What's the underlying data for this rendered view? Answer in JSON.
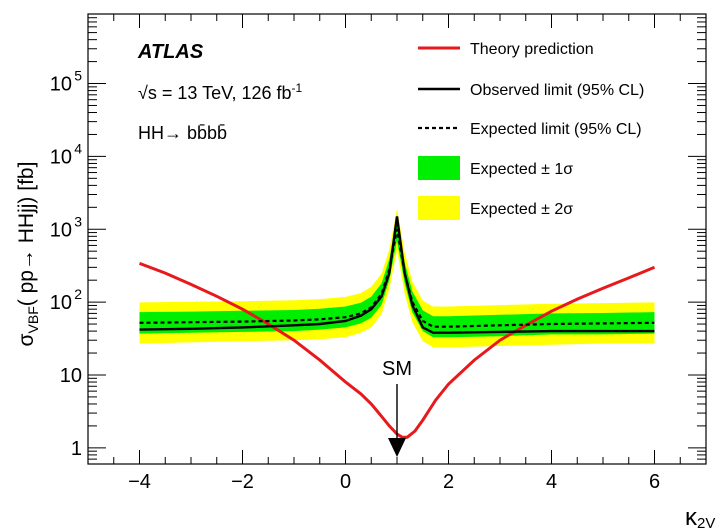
{
  "chart_data": {
    "type": "line",
    "title": "",
    "experiment": "ATLAS",
    "energy_label": "√s = 13 TeV, 126 fb",
    "lumi_superscript": "-1",
    "channel_label": "HH→ bb̄bb̄",
    "ylabel": "σ",
    "ylabel_sub": "VBF",
    "ylabel_rest": "( pp→ HHjj) [fb]",
    "xlabel": "κ",
    "xlabel_sub": "2V",
    "xlim": [
      -5,
      7
    ],
    "ylim": [
      0.6,
      900000
    ],
    "yscale": "log",
    "xticks": [
      "−4",
      "−2",
      "0",
      "2",
      "4",
      "6"
    ],
    "xtick_values": [
      -4,
      -2,
      0,
      2,
      4,
      6
    ],
    "yticks": [
      "1",
      "10",
      "10",
      "10",
      "10",
      "10"
    ],
    "ytick_exponents": [
      "",
      "",
      "2",
      "3",
      "4",
      "5"
    ],
    "ytick_values": [
      1,
      10,
      100,
      1000,
      10000,
      100000
    ],
    "annotation": {
      "text": "SM",
      "x": 1
    },
    "legend": {
      "placement": "top-right",
      "entries": [
        {
          "label": "Theory prediction",
          "style": "line",
          "color": "#e8191c"
        },
        {
          "label": "Observed limit (95% CL)",
          "style": "line",
          "color": "#000000"
        },
        {
          "label": "Expected limit (95% CL)",
          "style": "dashed",
          "color": "#000000"
        },
        {
          "label": "Expected ± 1σ",
          "style": "box",
          "color": "#00ee00"
        },
        {
          "label": "Expected ± 2σ",
          "style": "box",
          "color": "#ffff00"
        }
      ]
    },
    "x": [
      -4,
      -3,
      -2,
      -1,
      -0.5,
      0,
      0.3,
      0.5,
      0.7,
      0.85,
      1.0,
      1.15,
      1.3,
      1.5,
      1.7,
      2,
      3,
      4,
      5,
      6
    ],
    "series": [
      {
        "name": "Observed limit (95% CL)",
        "values": [
          42,
          43,
          45,
          48,
          50,
          55,
          65,
          80,
          120,
          250,
          1500,
          250,
          90,
          45,
          38,
          38,
          39,
          40,
          40,
          40
        ]
      },
      {
        "name": "Expected limit (95% CL)",
        "values": [
          52,
          53,
          54,
          56,
          58,
          62,
          70,
          85,
          130,
          280,
          1000,
          250,
          100,
          55,
          46,
          46,
          48,
          50,
          51,
          52
        ]
      }
    ],
    "band_1sigma": {
      "low": [
        37,
        38,
        39,
        40,
        42,
        45,
        51,
        61,
        92,
        200,
        700,
        180,
        72,
        40,
        33,
        33,
        34,
        36,
        36,
        37
      ],
      "high": [
        73,
        74,
        76,
        78,
        81,
        87,
        98,
        119,
        182,
        390,
        1400,
        350,
        140,
        77,
        64,
        64,
        67,
        70,
        71,
        73
      ]
    },
    "band_2sigma": {
      "low": [
        27,
        28,
        29,
        30,
        31,
        33,
        38,
        45,
        68,
        150,
        520,
        130,
        53,
        29,
        24,
        24,
        25,
        26,
        27,
        27
      ],
      "high": [
        99,
        101,
        103,
        106,
        110,
        118,
        133,
        162,
        247,
        530,
        1900,
        480,
        190,
        105,
        87,
        87,
        91,
        95,
        97,
        99
      ]
    },
    "theory": {
      "x": [
        -4,
        -3.5,
        -3,
        -2.5,
        -2,
        -1.5,
        -1,
        -0.5,
        0,
        0.3,
        0.5,
        0.7,
        0.85,
        1.0,
        1.1,
        1.2,
        1.35,
        1.5,
        1.75,
        2,
        2.5,
        3,
        3.5,
        4,
        4.5,
        5,
        5.5,
        6
      ],
      "values": [
        340,
        250,
        175,
        120,
        80,
        50,
        30,
        16,
        8,
        5.5,
        4.0,
        2.7,
        2.0,
        1.55,
        1.4,
        1.4,
        1.7,
        2.4,
        4.5,
        7.5,
        16,
        30,
        48,
        75,
        110,
        155,
        215,
        300
      ]
    }
  }
}
